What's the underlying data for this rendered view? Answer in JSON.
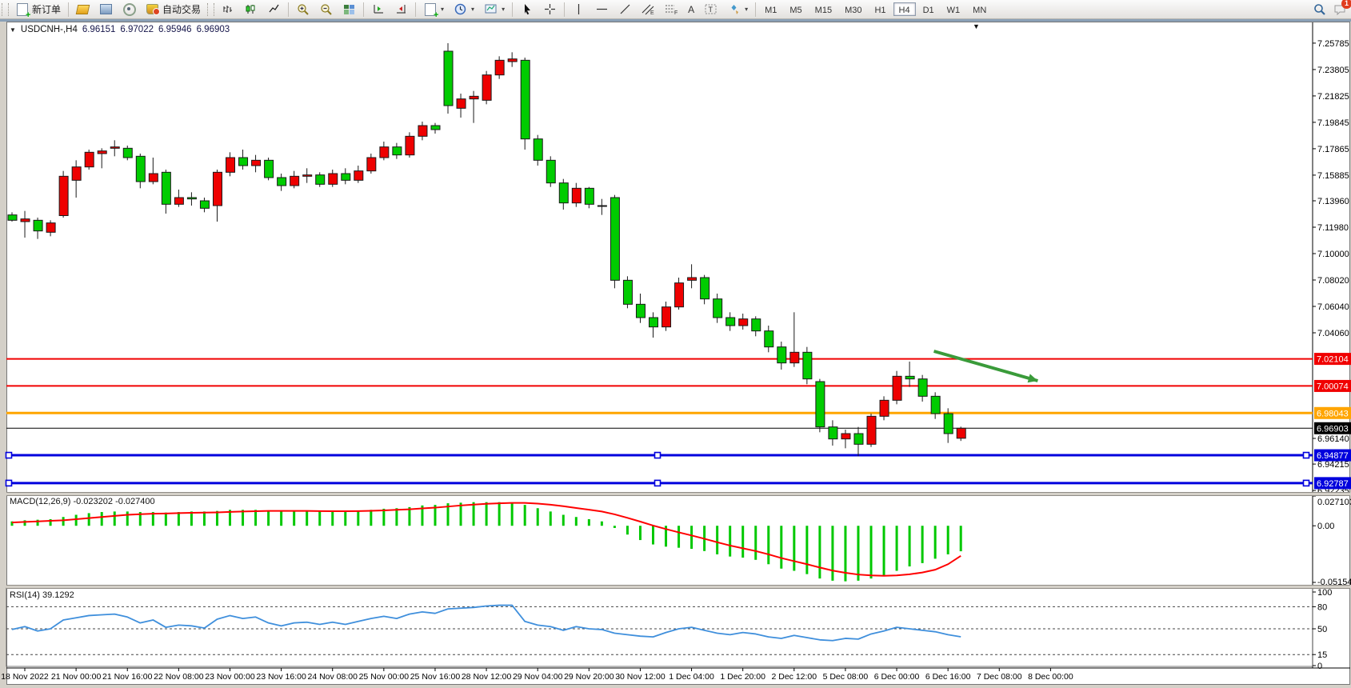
{
  "toolbar": {
    "new_order": "新订单",
    "auto_trading": "自动交易",
    "text_tool": "A",
    "label_tool": "T",
    "channel_letter": "E",
    "fib_letter": "F",
    "timeframes": [
      "M1",
      "M5",
      "M15",
      "M30",
      "H1",
      "H4",
      "D1",
      "W1",
      "MN"
    ],
    "active_timeframe": "H4",
    "notification_count": "1"
  },
  "title": {
    "dropdown": "▼",
    "symbol": "USDCNH-,H4",
    "open": "6.96151",
    "high": "6.97022",
    "low": "6.95946",
    "close": "6.96903"
  },
  "panels": {
    "macd_label": "MACD(12,26,9) -0.023202 -0.027400",
    "rsi_label": "RSI(14) 39.1292"
  },
  "chart_data": [
    {
      "type": "candlestick",
      "title": "USDCNH-,H4",
      "symbol": "USDCNH-",
      "timeframe": "H4",
      "ylim": [
        6.9212,
        7.265
      ],
      "grid": false,
      "up_color": "#ee0000",
      "down_color": "#00cc00",
      "bars": [
        [
          7.129,
          7.131,
          7.124,
          7.125
        ],
        [
          7.124,
          7.132,
          7.112,
          7.126
        ],
        [
          7.125,
          7.127,
          7.111,
          7.117
        ],
        [
          7.116,
          7.125,
          7.113,
          7.123
        ],
        [
          7.1285,
          7.162,
          7.127,
          7.158
        ],
        [
          7.155,
          7.17,
          7.142,
          7.165
        ],
        [
          7.165,
          7.178,
          7.163,
          7.176
        ],
        [
          7.175,
          7.179,
          7.164,
          7.177
        ],
        [
          7.179,
          7.185,
          7.173,
          7.18
        ],
        [
          7.179,
          7.181,
          7.17,
          7.172
        ],
        [
          7.173,
          7.175,
          7.149,
          7.154
        ],
        [
          7.154,
          7.172,
          7.152,
          7.16
        ],
        [
          7.161,
          7.163,
          7.13,
          7.137
        ],
        [
          7.137,
          7.148,
          7.135,
          7.142
        ],
        [
          7.142,
          7.146,
          7.136,
          7.141
        ],
        [
          7.1396,
          7.142,
          7.131,
          7.134
        ],
        [
          7.136,
          7.163,
          7.124,
          7.161
        ],
        [
          7.161,
          7.176,
          7.158,
          7.172
        ],
        [
          7.172,
          7.178,
          7.163,
          7.166
        ],
        [
          7.166,
          7.174,
          7.161,
          7.17
        ],
        [
          7.17,
          7.172,
          7.155,
          7.157
        ],
        [
          7.157,
          7.16,
          7.147,
          7.151
        ],
        [
          7.151,
          7.162,
          7.149,
          7.158
        ],
        [
          7.158,
          7.164,
          7.153,
          7.159
        ],
        [
          7.159,
          7.161,
          7.15,
          7.152
        ],
        [
          7.152,
          7.163,
          7.15,
          7.16
        ],
        [
          7.16,
          7.164,
          7.152,
          7.155
        ],
        [
          7.155,
          7.166,
          7.153,
          7.162
        ],
        [
          7.162,
          7.175,
          7.16,
          7.172
        ],
        [
          7.172,
          7.184,
          7.17,
          7.18
        ],
        [
          7.18,
          7.183,
          7.171,
          7.174
        ],
        [
          7.174,
          7.191,
          7.172,
          7.188
        ],
        [
          7.188,
          7.199,
          7.185,
          7.196
        ],
        [
          7.196,
          7.198,
          7.19,
          7.193
        ],
        [
          7.2518,
          7.2578,
          7.205,
          7.211
        ],
        [
          7.209,
          7.22,
          7.202,
          7.216
        ],
        [
          7.216,
          7.222,
          7.198,
          7.218
        ],
        [
          7.215,
          7.237,
          7.212,
          7.234
        ],
        [
          7.234,
          7.248,
          7.231,
          7.245
        ],
        [
          7.244,
          7.251,
          7.24,
          7.246
        ],
        [
          7.245,
          7.247,
          7.178,
          7.186
        ],
        [
          7.186,
          7.189,
          7.166,
          7.17
        ],
        [
          7.17,
          7.173,
          7.15,
          7.153
        ],
        [
          7.153,
          7.156,
          7.133,
          7.138
        ],
        [
          7.138,
          7.153,
          7.135,
          7.149
        ],
        [
          7.149,
          7.15,
          7.134,
          7.137
        ],
        [
          7.136,
          7.141,
          7.129,
          7.1355
        ],
        [
          7.142,
          7.144,
          7.074,
          7.08
        ],
        [
          7.08,
          7.083,
          7.059,
          7.062
        ],
        [
          7.062,
          7.07,
          7.048,
          7.052
        ],
        [
          7.052,
          7.056,
          7.037,
          7.045
        ],
        [
          7.045,
          7.064,
          7.042,
          7.06
        ],
        [
          7.06,
          7.082,
          7.058,
          7.078
        ],
        [
          7.08,
          7.092,
          7.074,
          7.082
        ],
        [
          7.082,
          7.084,
          7.062,
          7.066
        ],
        [
          7.066,
          7.07,
          7.048,
          7.052
        ],
        [
          7.052,
          7.056,
          7.042,
          7.046
        ],
        [
          7.046,
          7.055,
          7.043,
          7.051
        ],
        [
          7.051,
          7.053,
          7.038,
          7.042
        ],
        [
          7.042,
          7.046,
          7.026,
          7.03
        ],
        [
          7.03,
          7.034,
          7.013,
          7.018
        ],
        [
          7.018,
          7.056,
          7.015,
          7.026
        ],
        [
          7.026,
          7.03,
          7.002,
          7.006
        ],
        [
          7.004,
          7.006,
          6.966,
          6.97
        ],
        [
          6.97,
          6.975,
          6.956,
          6.961
        ],
        [
          6.961,
          6.968,
          6.954,
          6.965
        ],
        [
          6.965,
          6.97,
          6.948,
          6.957
        ],
        [
          6.957,
          6.98,
          6.955,
          6.978
        ],
        [
          6.978,
          6.993,
          6.975,
          6.99
        ],
        [
          6.99,
          7.012,
          6.987,
          7.008
        ],
        [
          7.008,
          7.019,
          7.0,
          7.006
        ],
        [
          7.006,
          7.009,
          6.989,
          6.993
        ],
        [
          6.993,
          6.996,
          6.976,
          6.98
        ],
        [
          6.98,
          6.984,
          6.958,
          6.965
        ],
        [
          6.9615,
          6.9702,
          6.9595,
          6.969
        ]
      ],
      "x_labels": [
        "18 Nov 2022",
        "21 Nov 00:00",
        "21 Nov 16:00",
        "22 Nov 08:00",
        "23 Nov 00:00",
        "23 Nov 16:00",
        "24 Nov 08:00",
        "25 Nov 00:00",
        "25 Nov 16:00",
        "28 Nov 12:00",
        "29 Nov 04:00",
        "29 Nov 20:00",
        "30 Nov 12:00",
        "1 Dec 04:00",
        "1 Dec 20:00",
        "2 Dec 12:00",
        "5 Dec 08:00",
        "6 Dec 00:00",
        "6 Dec 16:00",
        "7 Dec 08:00",
        "8 Dec 00:00"
      ],
      "price_ticks": [
        "7.25785",
        "7.23805",
        "7.21825",
        "7.19845",
        "7.17865",
        "7.15885",
        "7.13960",
        "7.11980",
        "7.10000",
        "7.08020",
        "7.06040",
        "7.04060",
        "6.96140",
        "6.94215",
        "6.92235"
      ],
      "hlines": [
        {
          "value": 7.02104,
          "label": "7.02104",
          "color": "#f00000",
          "width": 2,
          "selected": false
        },
        {
          "value": 7.00074,
          "label": "7.00074",
          "color": "#f00000",
          "width": 2,
          "selected": false
        },
        {
          "value": 6.98043,
          "label": "6.98043",
          "color": "#ffa500",
          "width": 3,
          "selected": false
        },
        {
          "value": 6.96903,
          "label": "6.96903",
          "color": "#000000",
          "width": 1,
          "selected": false
        },
        {
          "value": 6.94877,
          "label": "6.94877",
          "color": "#0000dd",
          "width": 3,
          "selected": true
        },
        {
          "value": 6.92787,
          "label": "6.92787",
          "color": "#0000dd",
          "width": 3,
          "selected": true
        }
      ],
      "annotations": [
        {
          "type": "arrow",
          "x1_bar": 71.9,
          "y1_price": 7.0268,
          "x2_bar": 80.0,
          "y2_price": 7.0046,
          "color": "#3a9b3a"
        }
      ]
    },
    {
      "type": "bar",
      "name": "MACD",
      "params": "12,26,9",
      "value_main": "-0.023202",
      "value_signal": "-0.027400",
      "ylim": [
        -0.051546,
        0.027103
      ],
      "ticks": [
        "0.027103",
        "0.00",
        "-0.051546"
      ],
      "tick_values": [
        0.027103,
        0.0,
        -0.051546
      ],
      "hist_color": "#00c800",
      "signal_color": "#ff0000",
      "values": [
        0.004,
        0.005,
        0.0055,
        0.006,
        0.008,
        0.01,
        0.0115,
        0.0125,
        0.013,
        0.013,
        0.0125,
        0.0125,
        0.012,
        0.0125,
        0.013,
        0.013,
        0.0135,
        0.0145,
        0.0145,
        0.0145,
        0.014,
        0.0135,
        0.0135,
        0.0135,
        0.013,
        0.013,
        0.013,
        0.0135,
        0.0145,
        0.0155,
        0.016,
        0.017,
        0.0185,
        0.019,
        0.0205,
        0.021,
        0.0215,
        0.0215,
        0.0215,
        0.021,
        0.019,
        0.016,
        0.013,
        0.01,
        0.008,
        0.006,
        0.004,
        -0.002,
        -0.008,
        -0.013,
        -0.017,
        -0.019,
        -0.02,
        -0.021,
        -0.023,
        -0.026,
        -0.028,
        -0.029,
        -0.031,
        -0.035,
        -0.039,
        -0.041,
        -0.044,
        -0.048,
        -0.05,
        -0.0505,
        -0.05,
        -0.048,
        -0.045,
        -0.041,
        -0.037,
        -0.034,
        -0.03,
        -0.026,
        -0.0232
      ],
      "signal": [
        0.003,
        0.0035,
        0.004,
        0.0045,
        0.005,
        0.006,
        0.007,
        0.008,
        0.009,
        0.01,
        0.0105,
        0.011,
        0.0112,
        0.0115,
        0.0118,
        0.012,
        0.0122,
        0.0126,
        0.013,
        0.0133,
        0.0135,
        0.0135,
        0.0135,
        0.0135,
        0.0134,
        0.0133,
        0.0133,
        0.0134,
        0.0136,
        0.014,
        0.0145,
        0.015,
        0.0158,
        0.0165,
        0.0175,
        0.0185,
        0.0193,
        0.02,
        0.0205,
        0.0208,
        0.0208,
        0.0202,
        0.0192,
        0.0178,
        0.0162,
        0.0146,
        0.013,
        0.0104,
        0.0072,
        0.0038,
        0.0002,
        -0.003,
        -0.006,
        -0.0088,
        -0.0118,
        -0.015,
        -0.018,
        -0.0205,
        -0.023,
        -0.026,
        -0.0294,
        -0.0322,
        -0.035,
        -0.038,
        -0.0408,
        -0.0428,
        -0.0444,
        -0.0452,
        -0.0455,
        -0.0452,
        -0.0442,
        -0.0425,
        -0.04,
        -0.035,
        -0.0274
      ]
    },
    {
      "type": "line",
      "name": "RSI",
      "params": "14",
      "value": "39.1292",
      "ylim": [
        0,
        100
      ],
      "levels": [
        80,
        50,
        15
      ],
      "ticks": [
        "100",
        "80",
        "50",
        "15",
        "0"
      ],
      "tick_values": [
        100,
        80,
        50,
        15,
        0
      ],
      "line_color": "#3f8fdc",
      "values": [
        49,
        53,
        47,
        50,
        62,
        65,
        68,
        69,
        70,
        66,
        58,
        62,
        52,
        55,
        54,
        51,
        63,
        68,
        64,
        66,
        58,
        54,
        58,
        59,
        56,
        59,
        56,
        60,
        64,
        67,
        64,
        70,
        73,
        71,
        77,
        78,
        79,
        81,
        82,
        82,
        60,
        55,
        53,
        48,
        53,
        50,
        49,
        44,
        42,
        40,
        39,
        45,
        50,
        52,
        48,
        44,
        42,
        45,
        43,
        39,
        37,
        41,
        38,
        35,
        34,
        37,
        36,
        43,
        47,
        52,
        50,
        48,
        46,
        42,
        39.13
      ]
    }
  ]
}
